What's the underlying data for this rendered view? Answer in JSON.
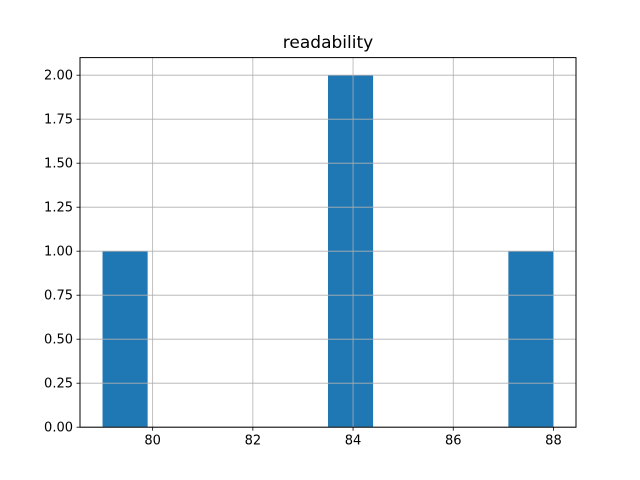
{
  "chart_data": {
    "type": "bar",
    "subtype": "histogram",
    "title": "readability",
    "values": [
      79,
      84,
      84,
      88
    ],
    "bins": [
      {
        "x0": 79.0,
        "x1": 79.9,
        "count": 1
      },
      {
        "x0": 83.5,
        "x1": 84.4,
        "count": 2
      },
      {
        "x0": 87.1,
        "x1": 88.0,
        "count": 1
      }
    ],
    "xlabel": "",
    "ylabel": "",
    "xlim": [
      78.55,
      88.45
    ],
    "ylim": [
      0,
      2.1
    ],
    "xticks": [
      "80",
      "82",
      "84",
      "86",
      "88"
    ],
    "yticks": [
      "0.00",
      "0.25",
      "0.50",
      "0.75",
      "1.00",
      "1.25",
      "1.50",
      "1.75",
      "2.00"
    ],
    "grid": true,
    "legend": "none",
    "bar_color": "#1f77b4",
    "grid_color": "#b0b0b0",
    "axis_color": "#000000",
    "background_color": "#ffffff"
  }
}
